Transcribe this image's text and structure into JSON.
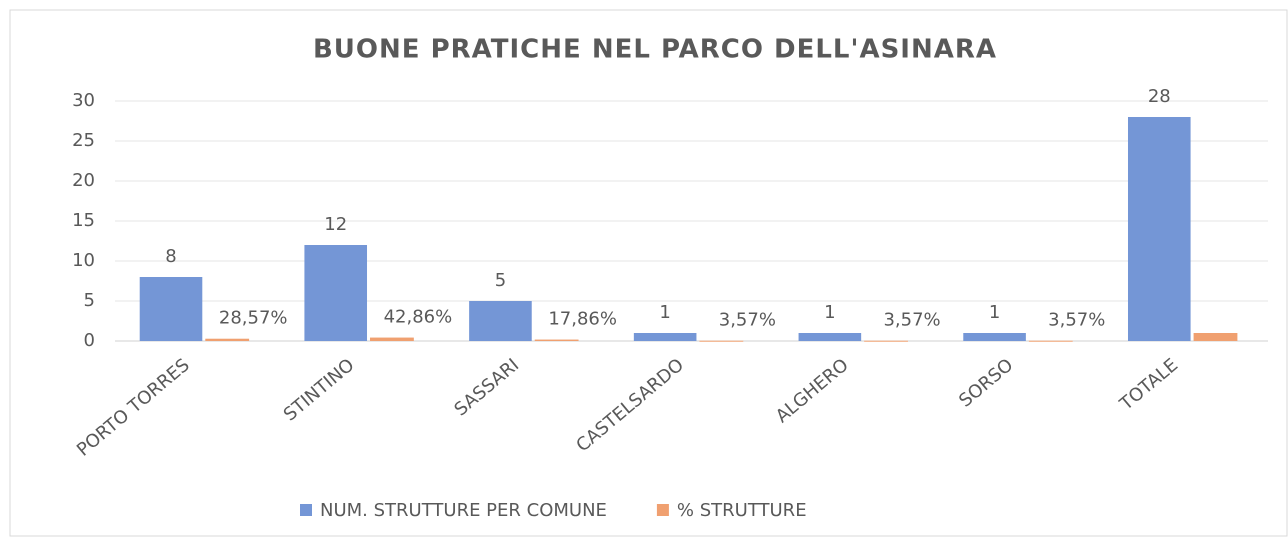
{
  "chart_data": {
    "type": "bar",
    "title": "BUONE PRATICHE NEL PARCO DELL'ASINARA",
    "categories": [
      "PORTO TORRES",
      "STINTINO",
      "SASSARI",
      "CASTELSARDO",
      "ALGHERO",
      "SORSO",
      "TOTALE"
    ],
    "series": [
      {
        "name": "NUM. STRUTTURE PER COMUNE",
        "color": "#7496d6",
        "values": [
          8,
          12,
          5,
          1,
          1,
          1,
          28
        ]
      },
      {
        "name": "% STRUTTURE",
        "color": "#f0a070",
        "values": [
          0.2857,
          0.4286,
          0.1786,
          0.0357,
          0.0357,
          0.0357,
          1
        ],
        "value_labels": [
          "28,57%",
          "42,86%",
          "17,86%",
          "3,57%",
          "3,57%",
          "3,57%",
          null
        ]
      }
    ],
    "ylim": [
      0,
      30
    ],
    "yticks": [
      0,
      5,
      10,
      15,
      20,
      25,
      30
    ],
    "grid": true,
    "legend": "bottom"
  }
}
